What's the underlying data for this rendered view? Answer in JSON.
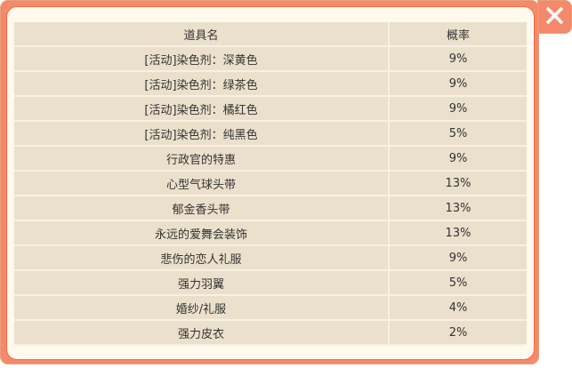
{
  "table": {
    "headers": [
      "道具名",
      "概率"
    ],
    "rows": [
      [
        "[活动]染色剂：深黄色",
        "9%"
      ],
      [
        "[活动]染色剂：绿茶色",
        "9%"
      ],
      [
        "[活动]染色剂：橘红色",
        "9%"
      ],
      [
        "[活动]染色剂：纯黑色",
        "5%"
      ],
      [
        "行政官的特惠",
        "9%"
      ],
      [
        "心型气球头带",
        "13%"
      ],
      [
        "郁金香头带",
        "13%"
      ],
      [
        "永远的爱舞会装饰",
        "13%"
      ],
      [
        "悲伤的恋人礼服",
        "9%"
      ],
      [
        "强力羽翼",
        "5%"
      ],
      [
        "婚纱/礼服",
        "4%"
      ],
      [
        "强力皮衣",
        "2%"
      ]
    ]
  },
  "close_icon": "close-icon"
}
